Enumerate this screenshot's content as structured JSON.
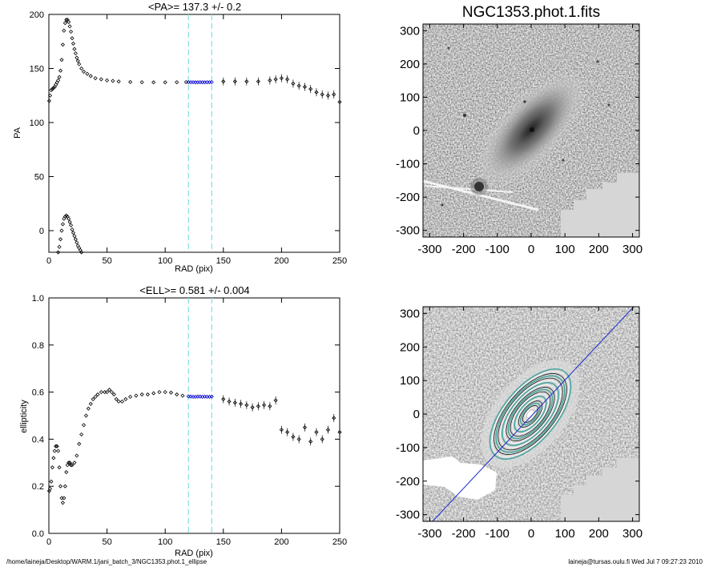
{
  "footer": {
    "path": "/home/laineja/Desktop/WARM.1/jani_batch_3/NGC1353.phot.1_ellipse",
    "user_stamp": "laineja@tursas.oulu.fi  Wed Jul  7 09:27:23 2010"
  },
  "chart_data": [
    {
      "type": "scatter",
      "title": "<PA>= 137.3 +/-   0.2",
      "xlabel": "RAD (pix)",
      "ylabel": "PA",
      "xlim": [
        0,
        250
      ],
      "ylim": [
        -20,
        200
      ],
      "xticks": [
        "0",
        "50",
        "100",
        "150",
        "200",
        "250"
      ],
      "yticks": [
        "0",
        "50",
        "100",
        "150",
        "200"
      ],
      "vlines": [
        120,
        140
      ],
      "series": [
        {
          "marker": "diamond",
          "color": "#000000",
          "points": [
            [
              0.3,
              120
            ],
            [
              1,
              125
            ],
            [
              2,
              130
            ],
            [
              3,
              131
            ],
            [
              4,
              132
            ],
            [
              5,
              133
            ],
            [
              6,
              135
            ],
            [
              7,
              137
            ],
            [
              8,
              139
            ],
            [
              9,
              142
            ],
            [
              10,
              148
            ],
            [
              11,
              158
            ],
            [
              12,
              172
            ],
            [
              13,
              185
            ],
            [
              14,
              192
            ],
            [
              15,
              195
            ],
            [
              16,
              195
            ],
            [
              17,
              193
            ],
            [
              18,
              189
            ],
            [
              19,
              184
            ],
            [
              20,
              178
            ],
            [
              21,
              173
            ],
            [
              22,
              168
            ],
            [
              23,
              164
            ],
            [
              24,
              160
            ],
            [
              25,
              157
            ],
            [
              26,
              154
            ],
            [
              28,
              150
            ],
            [
              30,
              147
            ],
            [
              33,
              145
            ],
            [
              36,
              143
            ],
            [
              40,
              141
            ],
            [
              45,
              140
            ],
            [
              50,
              139
            ],
            [
              55,
              138.5
            ],
            [
              60,
              138
            ],
            [
              70,
              137.5
            ],
            [
              80,
              137.3
            ],
            [
              90,
              137.2
            ],
            [
              100,
              137.2
            ],
            [
              110,
              137.3
            ],
            [
              118,
              137.4
            ],
            [
              150,
              138
            ],
            [
              160,
              138
            ],
            [
              170,
              138
            ],
            [
              180,
              138
            ],
            [
              190,
              139
            ],
            [
              195,
              140
            ],
            [
              200,
              141
            ],
            [
              205,
              140
            ],
            [
              210,
              136
            ],
            [
              215,
              134
            ],
            [
              220,
              133
            ],
            [
              225,
              131
            ],
            [
              230,
              128
            ],
            [
              235,
              126
            ],
            [
              240,
              125
            ],
            [
              245,
              126
            ],
            [
              250,
              119
            ]
          ]
        },
        {
          "marker": "diamond",
          "color": "#000000",
          "points": [
            [
              8,
              -20
            ],
            [
              9,
              -15
            ],
            [
              10,
              -8
            ],
            [
              11,
              0
            ],
            [
              12,
              6
            ],
            [
              13,
              11
            ],
            [
              14,
              13
            ],
            [
              15,
              14
            ],
            [
              16,
              13
            ],
            [
              17,
              11
            ],
            [
              18,
              8
            ],
            [
              19,
              5
            ],
            [
              20,
              1
            ],
            [
              21,
              -2
            ],
            [
              22,
              -5
            ],
            [
              23,
              -8
            ],
            [
              24,
              -11
            ],
            [
              25,
              -14
            ],
            [
              26,
              -16
            ],
            [
              27,
              -18
            ],
            [
              28,
              -20
            ]
          ]
        },
        {
          "marker": "diamond",
          "color": "#0000cc",
          "points": [
            [
              120,
              137.4
            ],
            [
              122,
              137.3
            ],
            [
              124,
              137.3
            ],
            [
              126,
              137.2
            ],
            [
              128,
              137.2
            ],
            [
              130,
              137.3
            ],
            [
              132,
              137.3
            ],
            [
              134,
              137.2
            ],
            [
              136,
              137.3
            ],
            [
              138,
              137.3
            ],
            [
              140,
              137.4
            ]
          ]
        }
      ]
    },
    {
      "type": "scatter",
      "title": "<ELL>= 0.581 +/-  0.004",
      "xlabel": "RAD (pix)",
      "ylabel": "ellipticity",
      "xlim": [
        0,
        250
      ],
      "ylim": [
        0,
        1
      ],
      "xticks": [
        "0",
        "50",
        "100",
        "150",
        "200",
        "250"
      ],
      "yticks": [
        "0.0",
        "0.2",
        "0.4",
        "0.6",
        "0.8",
        "1.0"
      ],
      "vlines": [
        120,
        140
      ],
      "series": [
        {
          "marker": "diamond",
          "color": "#000000",
          "points": [
            [
              0.3,
              0.18
            ],
            [
              1,
              0.19
            ],
            [
              2,
              0.22
            ],
            [
              3,
              0.28
            ],
            [
              4,
              0.32
            ],
            [
              5,
              0.35
            ],
            [
              6,
              0.37
            ],
            [
              7,
              0.37
            ],
            [
              8,
              0.35
            ],
            [
              9,
              0.28
            ],
            [
              10,
              0.2
            ],
            [
              11,
              0.15
            ],
            [
              12,
              0.13
            ],
            [
              13,
              0.15
            ],
            [
              14,
              0.2
            ],
            [
              15,
              0.26
            ],
            [
              16,
              0.29
            ],
            [
              17,
              0.3
            ],
            [
              18,
              0.3
            ],
            [
              19,
              0.29
            ],
            [
              20,
              0.29
            ],
            [
              22,
              0.3
            ],
            [
              24,
              0.33
            ],
            [
              26,
              0.38
            ],
            [
              28,
              0.42
            ],
            [
              30,
              0.46
            ],
            [
              32,
              0.5
            ],
            [
              34,
              0.53
            ],
            [
              36,
              0.55
            ],
            [
              38,
              0.57
            ],
            [
              40,
              0.58
            ],
            [
              42,
              0.59
            ],
            [
              45,
              0.6
            ],
            [
              48,
              0.6
            ],
            [
              50,
              0.6
            ],
            [
              52,
              0.61
            ],
            [
              54,
              0.6
            ],
            [
              56,
              0.59
            ],
            [
              58,
              0.57
            ],
            [
              60,
              0.56
            ],
            [
              63,
              0.56
            ],
            [
              66,
              0.57
            ],
            [
              70,
              0.58
            ],
            [
              75,
              0.585
            ],
            [
              80,
              0.59
            ],
            [
              85,
              0.59
            ],
            [
              90,
              0.595
            ],
            [
              95,
              0.6
            ],
            [
              100,
              0.6
            ],
            [
              105,
              0.598
            ],
            [
              110,
              0.59
            ],
            [
              115,
              0.585
            ],
            [
              150,
              0.57
            ],
            [
              155,
              0.56
            ],
            [
              160,
              0.555
            ],
            [
              165,
              0.55
            ],
            [
              170,
              0.545
            ],
            [
              175,
              0.535
            ],
            [
              180,
              0.54
            ],
            [
              185,
              0.545
            ],
            [
              190,
              0.54
            ],
            [
              195,
              0.565
            ],
            [
              200,
              0.44
            ],
            [
              205,
              0.43
            ],
            [
              210,
              0.41
            ],
            [
              215,
              0.4
            ],
            [
              220,
              0.45
            ],
            [
              225,
              0.39
            ],
            [
              230,
              0.43
            ],
            [
              235,
              0.4
            ],
            [
              240,
              0.44
            ],
            [
              245,
              0.49
            ],
            [
              250,
              0.43
            ]
          ]
        },
        {
          "marker": "diamond",
          "color": "#0000cc",
          "points": [
            [
              120,
              0.582
            ],
            [
              122,
              0.581
            ],
            [
              124,
              0.58
            ],
            [
              126,
              0.58
            ],
            [
              128,
              0.581
            ],
            [
              130,
              0.581
            ],
            [
              132,
              0.58
            ],
            [
              134,
              0.581
            ],
            [
              136,
              0.58
            ],
            [
              138,
              0.58
            ],
            [
              140,
              0.581
            ]
          ]
        }
      ]
    },
    {
      "type": "image",
      "title": "NGC1353.phot.1.fits",
      "xlim": [
        -320,
        320
      ],
      "ylim": [
        -320,
        320
      ],
      "xticks": [
        "-300",
        "-200",
        "-100",
        "0",
        "100",
        "200",
        "300"
      ],
      "yticks": [
        "-300",
        "-200",
        "-100",
        "0",
        "100",
        "200",
        "300"
      ]
    },
    {
      "type": "image",
      "title": "",
      "xlim": [
        -320,
        320
      ],
      "ylim": [
        -320,
        320
      ],
      "xticks": [
        "-300",
        "-200",
        "-100",
        "0",
        "100",
        "200",
        "300"
      ],
      "yticks": [
        "-300",
        "-200",
        "-100",
        "0",
        "100",
        "200",
        "300"
      ],
      "overlay": "ellipse contours with major-axis line"
    }
  ]
}
